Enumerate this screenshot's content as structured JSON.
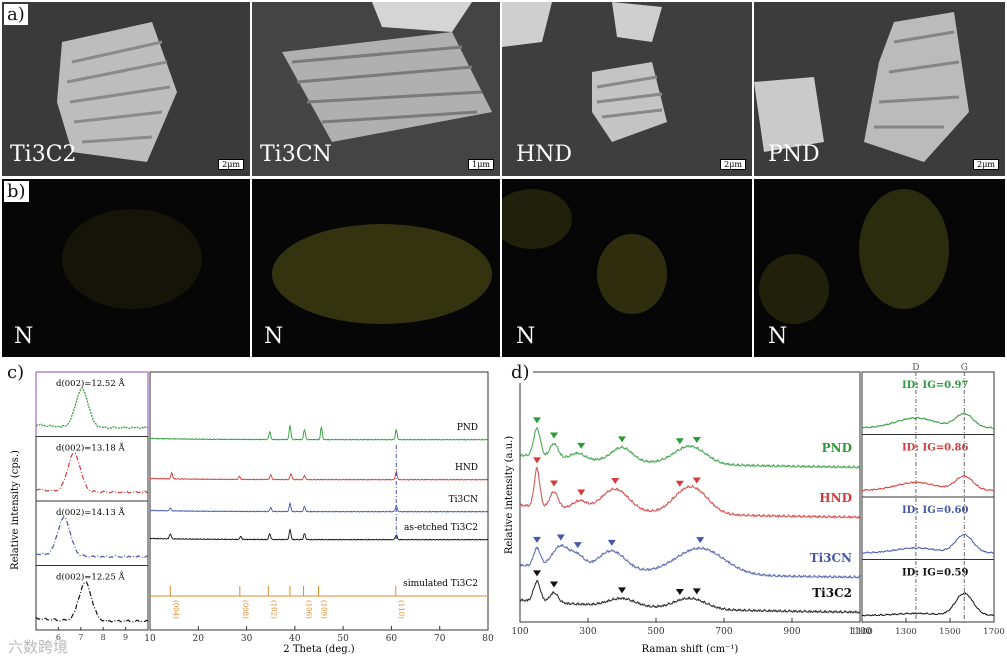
{
  "panel_labels": {
    "a": "a)",
    "b": "b)",
    "c": "c)",
    "d": "d)"
  },
  "sem": [
    {
      "label": "Ti3C2",
      "scale": "2μm"
    },
    {
      "label": "Ti3CN",
      "scale": "1μm"
    },
    {
      "label": "HND",
      "scale": "2μm"
    },
    {
      "label": "PND",
      "scale": "2μm"
    }
  ],
  "edx_label": "N",
  "watermark": "六数跨境",
  "colors": {
    "green": "#2e9b3a",
    "red": "#d33a3a",
    "blue": "#4656a8",
    "black": "#111111",
    "orange": "#e08a2a"
  },
  "chart_data": [
    {
      "type": "line",
      "id": "xrd-insets",
      "ylabel": "Relative intensity (cps.)",
      "xlim": [
        5,
        10
      ],
      "x_ticks": [
        6,
        7,
        8,
        9
      ],
      "series": [
        {
          "name": "PND",
          "color": "#2e9b3a",
          "annotation": "d(002)=12.52 Å",
          "peak": 7.05
        },
        {
          "name": "HND",
          "color": "#d33a3a",
          "annotation": "d(002)=13.18 Å",
          "peak": 6.7
        },
        {
          "name": "Ti3CN",
          "color": "#4656a8",
          "annotation": "d(002)=14.13 Å",
          "peak": 6.25
        },
        {
          "name": "as-etched Ti3C2",
          "color": "#111111",
          "annotation": "d(002)=12.25 Å",
          "peak": 7.2
        }
      ]
    },
    {
      "type": "line",
      "id": "xrd-main",
      "xlabel": "2 Theta (deg.)",
      "xlim": [
        10,
        80
      ],
      "x_ticks": [
        10,
        20,
        30,
        40,
        50,
        60,
        70,
        80
      ],
      "series": [
        {
          "name": "PND",
          "color": "#2e9b3a"
        },
        {
          "name": "HND",
          "color": "#d33a3a"
        },
        {
          "name": "Ti3CN",
          "color": "#4656a8"
        },
        {
          "name": "as-etched Ti3C2",
          "color": "#111111"
        },
        {
          "name": "simulated Ti3C2",
          "color": "#e08a2a"
        }
      ],
      "sim_peaks": [
        {
          "x": 14.2,
          "label": "(004)"
        },
        {
          "x": 28.6,
          "label": "(008)"
        },
        {
          "x": 34.5,
          "label": "(102)"
        },
        {
          "x": 39.0,
          "label": ""
        },
        {
          "x": 41.8,
          "label": "(106)"
        },
        {
          "x": 44.9,
          "label": "(109)"
        },
        {
          "x": 60.9,
          "label": "(110)"
        }
      ],
      "dashed_line_x": 61.0
    },
    {
      "type": "line",
      "id": "raman-main",
      "xlabel": "Raman shift (cm⁻¹)",
      "ylabel": "Relative intensity (a.u.)",
      "xlim": [
        100,
        1100
      ],
      "x_ticks": [
        100,
        300,
        500,
        700,
        900,
        1100
      ],
      "series": [
        {
          "name": "PND",
          "color": "#2e9b3a",
          "markers": [
            150,
            200,
            280,
            400,
            570,
            620
          ]
        },
        {
          "name": "HND",
          "color": "#d33a3a",
          "markers": [
            150,
            200,
            280,
            380,
            570,
            620
          ]
        },
        {
          "name": "Ti3CN",
          "color": "#4656a8",
          "markers": [
            150,
            220,
            270,
            370,
            630
          ]
        },
        {
          "name": "Ti3C2",
          "color": "#111111",
          "markers": [
            150,
            200,
            400,
            570,
            620
          ]
        }
      ]
    },
    {
      "type": "line",
      "id": "raman-dg",
      "xlim": [
        1100,
        1700
      ],
      "x_ticks": [
        1100,
        1300,
        1500,
        1700
      ],
      "d_label": "D",
      "g_label": "G",
      "d_x": 1345,
      "g_x": 1565,
      "series": [
        {
          "name": "PND",
          "color": "#2e9b3a",
          "ratio": "ID: IG=0.97"
        },
        {
          "name": "HND",
          "color": "#d33a3a",
          "ratio": "ID: IG=0.86"
        },
        {
          "name": "Ti3CN",
          "color": "#4656a8",
          "ratio": "ID: IG=0.60"
        },
        {
          "name": "Ti3C2",
          "color": "#111111",
          "ratio": "ID: IG=0.59"
        }
      ]
    }
  ]
}
